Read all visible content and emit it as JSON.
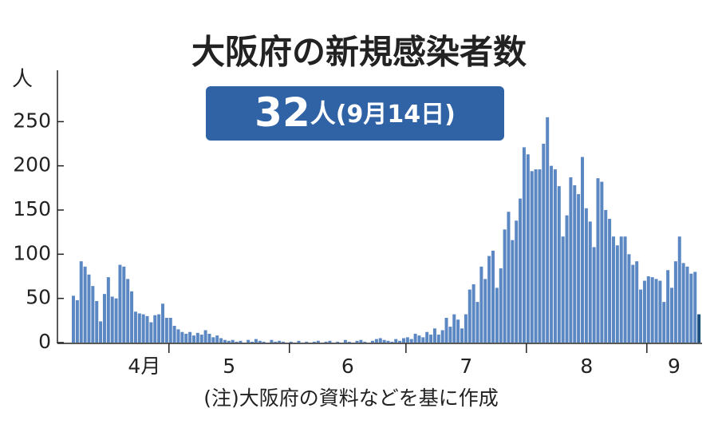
{
  "chart_data": {
    "type": "bar",
    "title": "大阪府の新規感染者数",
    "badge": {
      "value": "32",
      "unit": "人",
      "date": "(9月14日)"
    },
    "y_unit": "人",
    "note": "(注)大阪府の資料などを基に作成",
    "month_labels": [
      "4月",
      "5",
      "6",
      "7",
      "8",
      "9"
    ],
    "values": [
      53,
      48,
      92,
      86,
      77,
      64,
      47,
      24,
      55,
      74,
      52,
      50,
      88,
      86,
      72,
      58,
      35,
      33,
      32,
      30,
      23,
      31,
      32,
      44,
      28,
      28,
      19,
      15,
      12,
      10,
      12,
      8,
      11,
      9,
      14,
      10,
      6,
      8,
      5,
      3,
      2,
      3,
      1,
      2,
      0,
      3,
      1,
      4,
      2,
      1,
      0,
      3,
      1,
      2,
      1,
      0,
      1,
      0,
      2,
      0,
      1,
      0,
      1,
      2,
      0,
      1,
      2,
      0,
      1,
      0,
      3,
      1,
      0,
      2,
      3,
      1,
      0,
      2,
      4,
      5,
      3,
      2,
      1,
      4,
      2,
      5,
      6,
      4,
      10,
      8,
      6,
      12,
      9,
      16,
      9,
      14,
      28,
      18,
      32,
      26,
      16,
      32,
      60,
      66,
      46,
      86,
      72,
      98,
      104,
      62,
      84,
      128,
      148,
      116,
      138,
      163,
      221,
      213,
      194,
      196,
      196,
      225,
      255,
      200,
      196,
      177,
      120,
      144,
      187,
      178,
      168,
      210,
      152,
      137,
      108,
      186,
      182,
      150,
      140,
      120,
      110,
      120,
      120,
      100,
      88,
      92,
      60,
      70,
      75,
      74,
      72,
      70,
      46,
      82,
      62,
      92,
      120,
      90,
      86,
      78,
      80,
      32
    ],
    "color": "#5b87c2",
    "highlight": {
      "index": 161,
      "color": "#1d4f7f"
    },
    "ylim": [
      0,
      300
    ],
    "yticks": [
      0,
      50,
      100,
      150,
      200,
      250
    ]
  }
}
